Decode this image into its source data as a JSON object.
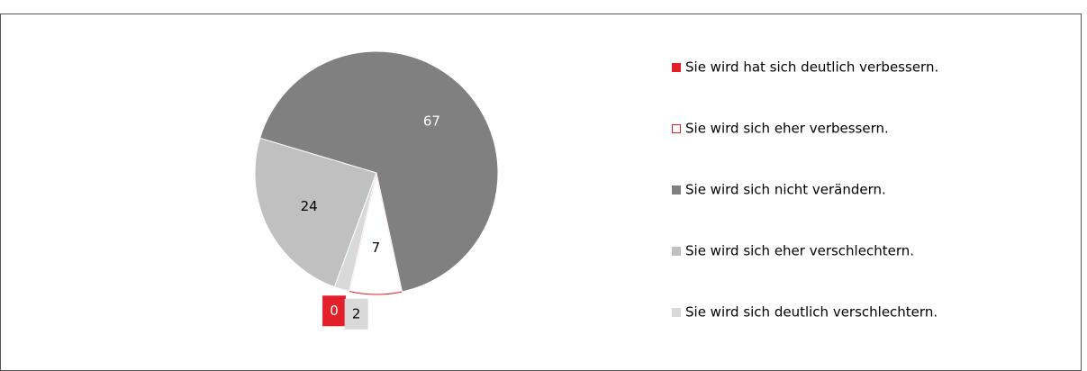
{
  "chart_data": {
    "type": "pie",
    "categories": [
      "Sie wird hat sich deutlich verbessern.",
      "Sie wird sich eher verbessern.",
      "Sie wird sich nicht verändern.",
      "Sie wird sich eher verschlechtern.",
      "Sie wird sich deutlich verschlechtern."
    ],
    "values": [
      0,
      7,
      67,
      24,
      2
    ],
    "colors": [
      "#e3202a",
      "#ffffff",
      "#808080",
      "#c0c0c0",
      "#d9d9d9"
    ],
    "edgecolors": [
      "#e3202a",
      "#e3202a",
      "#ffffff",
      "#ffffff",
      "#ffffff"
    ],
    "legend": "right"
  }
}
